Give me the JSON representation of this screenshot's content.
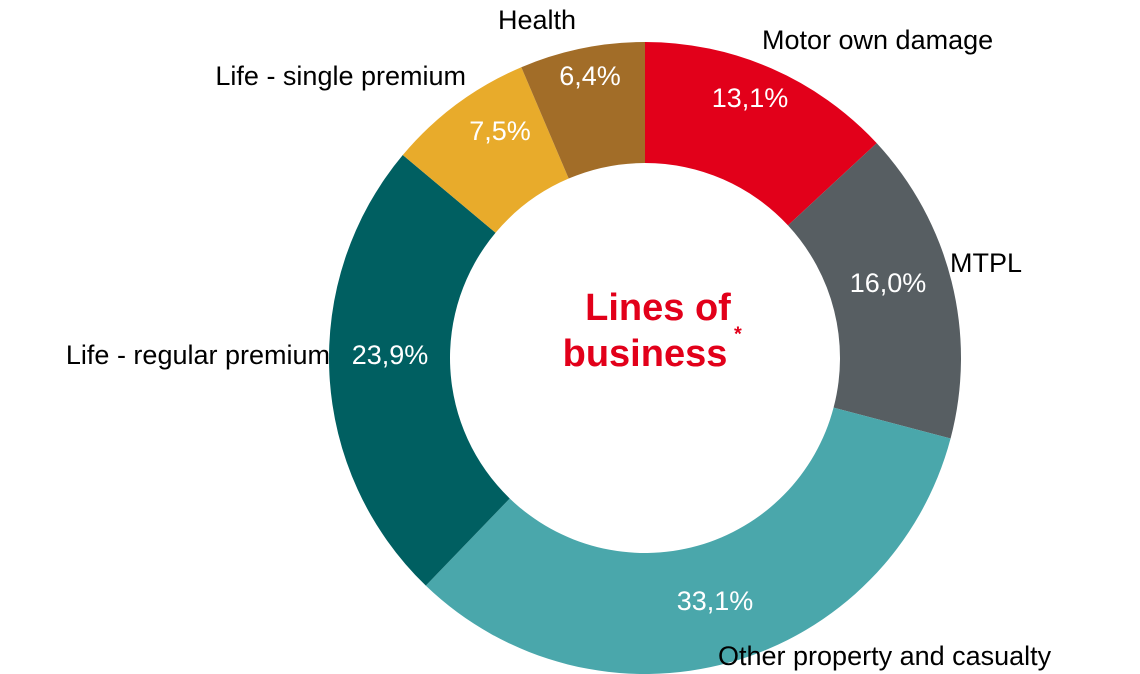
{
  "chart_data": {
    "type": "donut",
    "center_text": [
      "Lines of",
      "business"
    ],
    "center_mark": "*",
    "categories": [
      "Motor own damage",
      "MTPL",
      "Other property and casualty",
      "Life - regular premium",
      "Life - single premium",
      "Health"
    ],
    "values": [
      13.1,
      16.0,
      33.1,
      23.9,
      7.5,
      6.4
    ],
    "value_labels": [
      "13,1%",
      "16,0%",
      "33,1%",
      "23,9%",
      "7,5%",
      "6,4%"
    ],
    "colors": [
      "#e2001a",
      "#575e62",
      "#4aa7ab",
      "#005f61",
      "#e8ab2b",
      "#a26d28"
    ]
  }
}
